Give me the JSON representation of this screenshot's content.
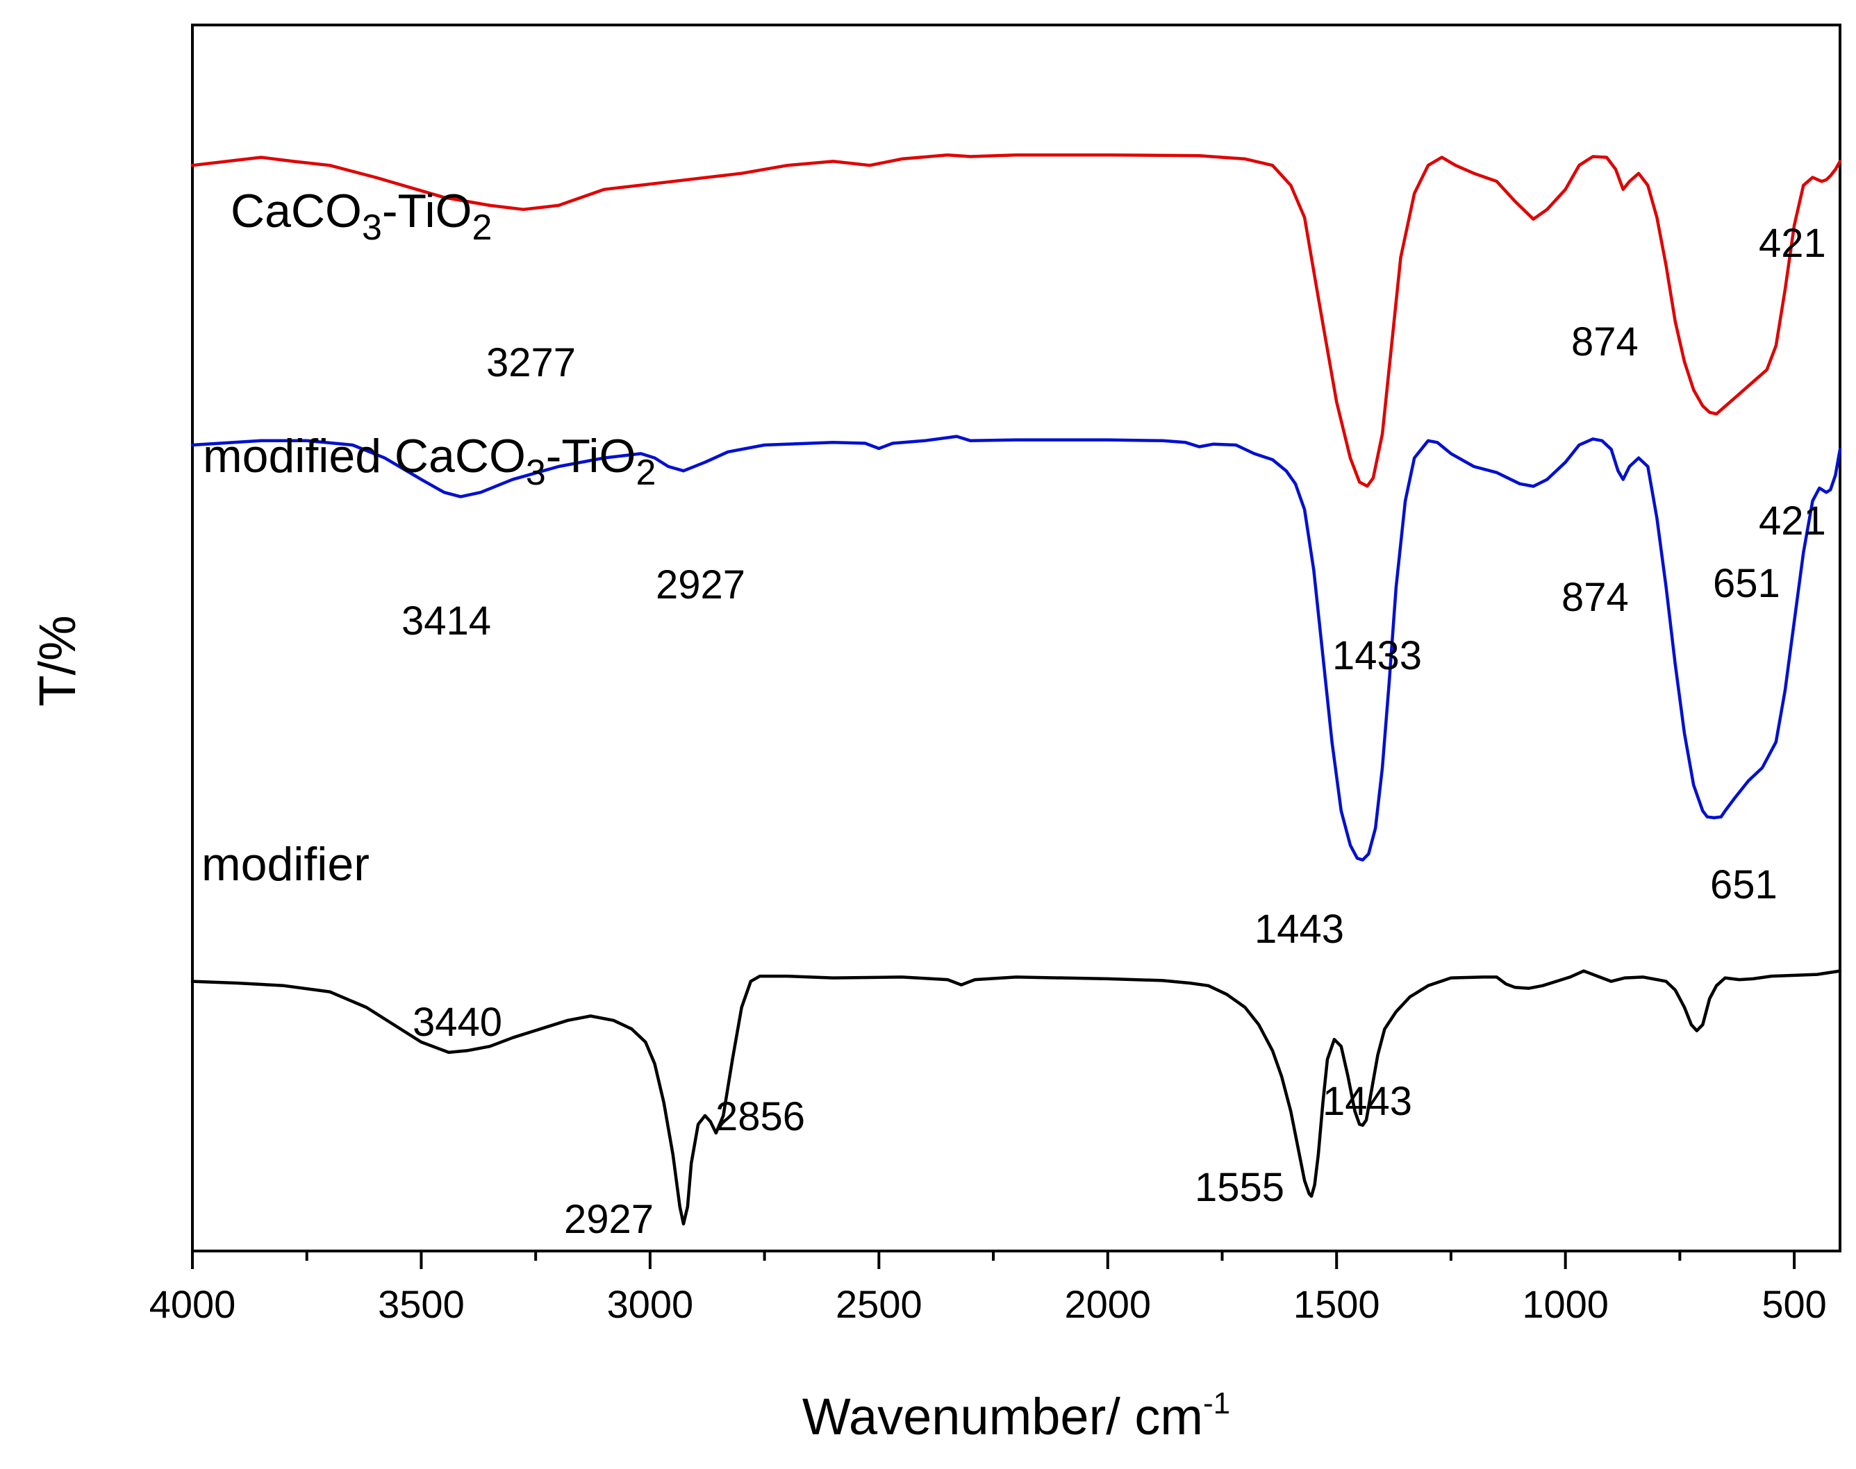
{
  "chart_data": {
    "type": "line",
    "title": "",
    "xlabel": "Wavenumber/ cm",
    "xlabel_sup": "-1",
    "ylabel": "T/%",
    "xlim": [
      4000,
      400
    ],
    "xticks": [
      4000,
      3500,
      3000,
      2500,
      2000,
      1500,
      1000,
      500
    ],
    "ylim": [
      0,
      100
    ],
    "grid": false,
    "series": [
      {
        "name": "CaCO3-TiO2",
        "label_parts": {
          "a": "CaCO",
          "b": "3",
          "c": "-TiO",
          "d": "2"
        },
        "color": "#e00000",
        "points": [
          [
            4000,
            91.5
          ],
          [
            3850,
            92.5
          ],
          [
            3780,
            92
          ],
          [
            3700,
            91.5
          ],
          [
            3600,
            90
          ],
          [
            3450,
            87.5
          ],
          [
            3350,
            86.5
          ],
          [
            3277,
            86
          ],
          [
            3200,
            86.5
          ],
          [
            3100,
            88.5
          ],
          [
            2950,
            89.5
          ],
          [
            2800,
            90.5
          ],
          [
            2700,
            91.5
          ],
          [
            2600,
            92
          ],
          [
            2520,
            91.5
          ],
          [
            2450,
            92.3
          ],
          [
            2350,
            92.8
          ],
          [
            2300,
            92.6
          ],
          [
            2200,
            92.8
          ],
          [
            2000,
            92.8
          ],
          [
            1800,
            92.7
          ],
          [
            1700,
            92.3
          ],
          [
            1640,
            91.5
          ],
          [
            1600,
            89
          ],
          [
            1570,
            85
          ],
          [
            1540,
            75
          ],
          [
            1500,
            62
          ],
          [
            1470,
            55
          ],
          [
            1450,
            52
          ],
          [
            1433,
            51.5
          ],
          [
            1420,
            52.5
          ],
          [
            1400,
            58
          ],
          [
            1380,
            69
          ],
          [
            1360,
            80
          ],
          [
            1330,
            88
          ],
          [
            1300,
            91.5
          ],
          [
            1270,
            92.5
          ],
          [
            1240,
            91.5
          ],
          [
            1200,
            90.5
          ],
          [
            1150,
            89.5
          ],
          [
            1110,
            87
          ],
          [
            1070,
            84.8
          ],
          [
            1040,
            86
          ],
          [
            1000,
            88.5
          ],
          [
            970,
            91.5
          ],
          [
            940,
            92.6
          ],
          [
            910,
            92.5
          ],
          [
            890,
            91
          ],
          [
            874,
            88.5
          ],
          [
            860,
            89.5
          ],
          [
            840,
            90.5
          ],
          [
            820,
            89
          ],
          [
            800,
            85
          ],
          [
            780,
            79
          ],
          [
            760,
            72
          ],
          [
            740,
            67
          ],
          [
            720,
            63.5
          ],
          [
            700,
            61.5
          ],
          [
            685,
            60.7
          ],
          [
            670,
            60.5
          ],
          [
            650,
            61.5
          ],
          [
            620,
            63
          ],
          [
            590,
            64.5
          ],
          [
            560,
            66
          ],
          [
            540,
            69
          ],
          [
            520,
            76
          ],
          [
            500,
            84
          ],
          [
            480,
            89
          ],
          [
            460,
            90
          ],
          [
            440,
            89.5
          ],
          [
            430,
            89.7
          ],
          [
            421,
            90.2
          ],
          [
            410,
            91
          ],
          [
            400,
            92
          ]
        ]
      },
      {
        "name": "modified CaCO3-TiO2",
        "label_parts": {
          "a": "modified CaCO",
          "b": "3",
          "c": "-TiO",
          "d": "2"
        },
        "color": "#0010d0",
        "points": [
          [
            4000,
            72.5
          ],
          [
            3850,
            73
          ],
          [
            3750,
            73
          ],
          [
            3650,
            72.5
          ],
          [
            3580,
            71
          ],
          [
            3500,
            68.5
          ],
          [
            3450,
            67
          ],
          [
            3414,
            66.5
          ],
          [
            3370,
            67
          ],
          [
            3300,
            68.5
          ],
          [
            3200,
            70
          ],
          [
            3100,
            71
          ],
          [
            3020,
            71.5
          ],
          [
            2990,
            71
          ],
          [
            2960,
            70
          ],
          [
            2927,
            69.5
          ],
          [
            2880,
            70.5
          ],
          [
            2830,
            71.7
          ],
          [
            2750,
            72.5
          ],
          [
            2600,
            72.8
          ],
          [
            2530,
            72.7
          ],
          [
            2500,
            72.1
          ],
          [
            2470,
            72.7
          ],
          [
            2400,
            73
          ],
          [
            2330,
            73.5
          ],
          [
            2300,
            73
          ],
          [
            2200,
            73.1
          ],
          [
            2000,
            73.1
          ],
          [
            1880,
            73
          ],
          [
            1830,
            72.8
          ],
          [
            1800,
            72.3
          ],
          [
            1770,
            72.6
          ],
          [
            1720,
            72.5
          ],
          [
            1680,
            71.5
          ],
          [
            1640,
            70.8
          ],
          [
            1610,
            69.5
          ],
          [
            1590,
            68
          ],
          [
            1570,
            65
          ],
          [
            1550,
            58
          ],
          [
            1530,
            48
          ],
          [
            1510,
            38
          ],
          [
            1490,
            30
          ],
          [
            1470,
            26
          ],
          [
            1455,
            24.5
          ],
          [
            1443,
            24.3
          ],
          [
            1430,
            25
          ],
          [
            1415,
            28
          ],
          [
            1400,
            35
          ],
          [
            1385,
            45
          ],
          [
            1370,
            56
          ],
          [
            1350,
            66
          ],
          [
            1330,
            71
          ],
          [
            1300,
            73
          ],
          [
            1280,
            72.8
          ],
          [
            1250,
            71.5
          ],
          [
            1200,
            70
          ],
          [
            1150,
            69.3
          ],
          [
            1100,
            68
          ],
          [
            1070,
            67.7
          ],
          [
            1040,
            68.5
          ],
          [
            1000,
            70.5
          ],
          [
            970,
            72.5
          ],
          [
            940,
            73.2
          ],
          [
            920,
            73
          ],
          [
            900,
            72
          ],
          [
            885,
            69.5
          ],
          [
            874,
            68.5
          ],
          [
            860,
            70
          ],
          [
            840,
            71
          ],
          [
            820,
            70
          ],
          [
            800,
            64
          ],
          [
            780,
            56
          ],
          [
            760,
            47
          ],
          [
            740,
            39
          ],
          [
            720,
            33
          ],
          [
            700,
            30
          ],
          [
            690,
            29.3
          ],
          [
            675,
            29.2
          ],
          [
            660,
            29.3
          ],
          [
            651,
            30
          ],
          [
            630,
            31.5
          ],
          [
            600,
            33.5
          ],
          [
            570,
            35
          ],
          [
            540,
            38
          ],
          [
            520,
            44
          ],
          [
            500,
            52
          ],
          [
            480,
            60
          ],
          [
            460,
            66
          ],
          [
            445,
            67.5
          ],
          [
            430,
            67
          ],
          [
            421,
            67.3
          ],
          [
            410,
            69
          ],
          [
            400,
            72
          ]
        ]
      },
      {
        "name": "modifier",
        "color": "#000000",
        "points": [
          [
            4000,
            30
          ],
          [
            3900,
            29.8
          ],
          [
            3800,
            29.5
          ],
          [
            3700,
            28.8
          ],
          [
            3620,
            27
          ],
          [
            3560,
            25
          ],
          [
            3500,
            23
          ],
          [
            3450,
            22
          ],
          [
            3440,
            21.8
          ],
          [
            3400,
            22
          ],
          [
            3350,
            22.5
          ],
          [
            3300,
            23.5
          ],
          [
            3240,
            24.5
          ],
          [
            3180,
            25.5
          ],
          [
            3130,
            26
          ],
          [
            3080,
            25.5
          ],
          [
            3040,
            24.5
          ],
          [
            3010,
            23
          ],
          [
            2990,
            20.5
          ],
          [
            2970,
            16
          ],
          [
            2950,
            10
          ],
          [
            2940,
            6
          ],
          [
            2935,
            4
          ],
          [
            2927,
            2
          ],
          [
            2918,
            4
          ],
          [
            2910,
            9
          ],
          [
            2895,
            13.5
          ],
          [
            2880,
            14.5
          ],
          [
            2868,
            13.8
          ],
          [
            2856,
            12.5
          ],
          [
            2840,
            14.5
          ],
          [
            2820,
            21
          ],
          [
            2800,
            27
          ],
          [
            2780,
            30
          ],
          [
            2760,
            30.6
          ],
          [
            2700,
            30.6
          ],
          [
            2600,
            30.4
          ],
          [
            2450,
            30.5
          ],
          [
            2350,
            30.2
          ],
          [
            2320,
            29.6
          ],
          [
            2290,
            30.2
          ],
          [
            2200,
            30.5
          ],
          [
            2000,
            30.3
          ],
          [
            1880,
            30.1
          ],
          [
            1820,
            29.8
          ],
          [
            1780,
            29.5
          ],
          [
            1740,
            28.5
          ],
          [
            1700,
            27
          ],
          [
            1670,
            25
          ],
          [
            1640,
            22
          ],
          [
            1620,
            19
          ],
          [
            1600,
            15
          ],
          [
            1585,
            11
          ],
          [
            1570,
            7
          ],
          [
            1560,
            5.5
          ],
          [
            1555,
            5.2
          ],
          [
            1548,
            6.5
          ],
          [
            1540,
            10
          ],
          [
            1530,
            16
          ],
          [
            1520,
            21
          ],
          [
            1505,
            23.3
          ],
          [
            1490,
            22.5
          ],
          [
            1475,
            19
          ],
          [
            1460,
            15
          ],
          [
            1450,
            13.5
          ],
          [
            1443,
            13.4
          ],
          [
            1435,
            14
          ],
          [
            1425,
            17
          ],
          [
            1410,
            21.5
          ],
          [
            1395,
            24.5
          ],
          [
            1370,
            26.5
          ],
          [
            1340,
            28.2
          ],
          [
            1300,
            29.5
          ],
          [
            1250,
            30.4
          ],
          [
            1180,
            30.5
          ],
          [
            1150,
            30.5
          ],
          [
            1130,
            29.7
          ],
          [
            1110,
            29.3
          ],
          [
            1080,
            29.2
          ],
          [
            1050,
            29.5
          ],
          [
            1020,
            30
          ],
          [
            990,
            30.5
          ],
          [
            960,
            31.2
          ],
          [
            930,
            30.6
          ],
          [
            900,
            30
          ],
          [
            870,
            30.4
          ],
          [
            830,
            30.5
          ],
          [
            800,
            30.2
          ],
          [
            780,
            30
          ],
          [
            760,
            29
          ],
          [
            740,
            27
          ],
          [
            725,
            25
          ],
          [
            713,
            24.3
          ],
          [
            700,
            25
          ],
          [
            685,
            28
          ],
          [
            670,
            29.5
          ],
          [
            651,
            30.4
          ],
          [
            620,
            30.2
          ],
          [
            590,
            30.3
          ],
          [
            550,
            30.6
          ],
          [
            500,
            30.7
          ],
          [
            450,
            30.8
          ],
          [
            400,
            31.2
          ]
        ]
      }
    ],
    "annotations": [
      {
        "series": 0,
        "text": "3277",
        "x": 3277
      },
      {
        "series": 0,
        "text": "1433",
        "x": 1433
      },
      {
        "series": 0,
        "text": "874",
        "x": 874
      },
      {
        "series": 0,
        "text": "421",
        "x": 421
      },
      {
        "series": 1,
        "text": "3414",
        "x": 3414
      },
      {
        "series": 1,
        "text": "2927",
        "x": 2927
      },
      {
        "series": 1,
        "text": "1443",
        "x": 1443
      },
      {
        "series": 1,
        "text": "874",
        "x": 874
      },
      {
        "series": 1,
        "text": "651",
        "x": 651
      },
      {
        "series": 1,
        "text": "421",
        "x": 421
      },
      {
        "series": 2,
        "text": "3440",
        "x": 3440
      },
      {
        "series": 2,
        "text": "2927",
        "x": 2927
      },
      {
        "series": 2,
        "text": "2856",
        "x": 2856
      },
      {
        "series": 2,
        "text": "1555",
        "x": 1555
      },
      {
        "series": 2,
        "text": "1443",
        "x": 1443
      },
      {
        "series": 2,
        "text": "651",
        "x": 651
      }
    ]
  }
}
